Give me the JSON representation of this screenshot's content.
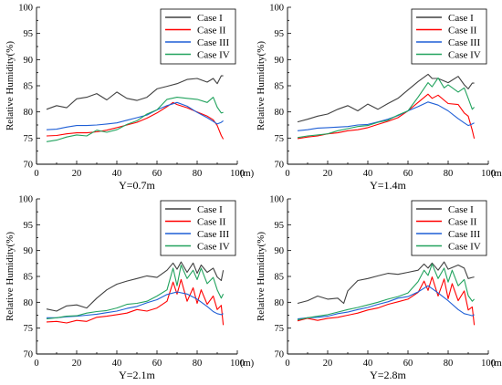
{
  "chart_data": [
    {
      "type": "line",
      "xlabel": "Y=0.7m",
      "ylabel": "Relative Humidity(%)",
      "x_unit": "(m)",
      "xlim": [
        0,
        100
      ],
      "ylim": [
        70,
        100
      ],
      "xticks": [
        0,
        20,
        40,
        60,
        80,
        100
      ],
      "yticks": [
        70,
        75,
        80,
        85,
        90,
        95,
        100
      ],
      "grid": false,
      "legend_position": "top-right",
      "series": [
        {
          "name": "Case I",
          "color": "#404040",
          "x": [
            5,
            10,
            15,
            20,
            25,
            30,
            35,
            40,
            45,
            50,
            55,
            60,
            65,
            70,
            75,
            80,
            85,
            88,
            90,
            92,
            93
          ],
          "y": [
            80.5,
            81.2,
            80.8,
            82.5,
            82.8,
            83.5,
            82.3,
            83.8,
            82.6,
            82.2,
            82.8,
            84.4,
            84.9,
            85.4,
            86.2,
            86.4,
            85.7,
            86.4,
            85.4,
            86.9,
            86.9
          ]
        },
        {
          "name": "Case II",
          "color": "#ff0000",
          "x": [
            5,
            10,
            15,
            20,
            25,
            30,
            35,
            40,
            45,
            50,
            55,
            60,
            65,
            68,
            70,
            75,
            80,
            85,
            88,
            90,
            92,
            93
          ],
          "y": [
            75.4,
            75.5,
            75.8,
            76.0,
            76.0,
            76.2,
            76.5,
            77.0,
            77.5,
            78.0,
            78.8,
            79.8,
            81.0,
            81.8,
            81.4,
            80.8,
            80.0,
            79.2,
            78.5,
            77.4,
            75.5,
            74.8
          ]
        },
        {
          "name": "Case III",
          "color": "#1f5fd6",
          "x": [
            5,
            10,
            15,
            20,
            25,
            30,
            35,
            40,
            45,
            50,
            55,
            60,
            65,
            70,
            75,
            80,
            85,
            88,
            90,
            92,
            93
          ],
          "y": [
            76.6,
            76.7,
            77.1,
            77.4,
            77.4,
            77.5,
            77.7,
            77.9,
            78.4,
            78.9,
            79.4,
            80.4,
            81.2,
            81.8,
            81.1,
            79.9,
            78.9,
            78.2,
            77.7,
            78.0,
            78.3
          ]
        },
        {
          "name": "Case IV",
          "color": "#22a35e",
          "x": [
            5,
            10,
            15,
            20,
            25,
            30,
            35,
            40,
            45,
            50,
            55,
            60,
            65,
            70,
            75,
            80,
            85,
            88,
            90,
            92,
            93
          ],
          "y": [
            74.3,
            74.6,
            75.2,
            75.6,
            75.4,
            76.5,
            76.1,
            76.6,
            77.6,
            78.3,
            79.6,
            80.4,
            82.4,
            82.8,
            82.6,
            82.4,
            81.8,
            82.8,
            80.9,
            79.8,
            79.9
          ]
        }
      ]
    },
    {
      "type": "line",
      "xlabel": "Y=1.4m",
      "ylabel": "Relative Humidity(%)",
      "x_unit": "(m)",
      "xlim": [
        0,
        100
      ],
      "ylim": [
        70,
        100
      ],
      "xticks": [
        0,
        20,
        40,
        60,
        80,
        100
      ],
      "yticks": [
        70,
        75,
        80,
        85,
        90,
        95,
        100
      ],
      "grid": false,
      "legend_position": "top-right",
      "series": [
        {
          "name": "Case I",
          "color": "#404040",
          "x": [
            5,
            10,
            15,
            20,
            25,
            30,
            35,
            40,
            45,
            50,
            55,
            60,
            65,
            70,
            72,
            75,
            80,
            85,
            88,
            90,
            92,
            93
          ],
          "y": [
            78.1,
            78.6,
            79.2,
            79.6,
            80.5,
            81.2,
            80.2,
            81.5,
            80.5,
            81.6,
            82.6,
            84.2,
            85.8,
            87.2,
            86.4,
            86.4,
            85.6,
            86.8,
            85.2,
            84.4,
            85.5,
            85.5
          ]
        },
        {
          "name": "Case II",
          "color": "#ff0000",
          "x": [
            5,
            10,
            15,
            20,
            25,
            30,
            35,
            40,
            45,
            50,
            55,
            60,
            65,
            70,
            72,
            75,
            80,
            85,
            88,
            90,
            92,
            93
          ],
          "y": [
            74.9,
            75.2,
            75.4,
            75.8,
            76.0,
            76.4,
            76.6,
            77.0,
            77.6,
            78.2,
            78.9,
            80.2,
            81.8,
            83.4,
            82.6,
            83.2,
            81.6,
            81.4,
            79.8,
            79.2,
            76.5,
            74.9
          ]
        },
        {
          "name": "Case III",
          "color": "#1f5fd6",
          "x": [
            5,
            10,
            15,
            20,
            25,
            30,
            35,
            40,
            45,
            50,
            55,
            60,
            65,
            70,
            75,
            80,
            85,
            88,
            90,
            92,
            93
          ],
          "y": [
            76.4,
            76.6,
            76.9,
            77.0,
            77.1,
            77.2,
            77.5,
            77.6,
            78.1,
            78.6,
            79.3,
            80.2,
            81.0,
            81.9,
            81.3,
            80.2,
            78.7,
            77.9,
            77.4,
            77.7,
            77.9
          ]
        },
        {
          "name": "Case IV",
          "color": "#22a35e",
          "x": [
            5,
            10,
            15,
            20,
            25,
            30,
            35,
            40,
            45,
            50,
            55,
            60,
            65,
            70,
            72,
            75,
            78,
            80,
            85,
            88,
            90,
            92,
            93
          ],
          "y": [
            75.1,
            75.4,
            75.6,
            75.8,
            76.4,
            76.8,
            77.2,
            77.4,
            78.0,
            78.4,
            79.4,
            80.2,
            82.8,
            85.6,
            84.8,
            86.5,
            84.6,
            85.2,
            83.8,
            84.6,
            82.6,
            80.5,
            80.9
          ]
        }
      ]
    },
    {
      "type": "line",
      "xlabel": "Y=2.1m",
      "ylabel": "Relative Humidity(%)",
      "x_unit": "(m)",
      "xlim": [
        0,
        100
      ],
      "ylim": [
        70,
        100
      ],
      "xticks": [
        0,
        20,
        40,
        60,
        80,
        100
      ],
      "yticks": [
        70,
        75,
        80,
        85,
        90,
        95,
        100
      ],
      "grid": false,
      "legend_position": "top-right",
      "series": [
        {
          "name": "Case I",
          "color": "#404040",
          "x": [
            5,
            10,
            15,
            20,
            25,
            30,
            35,
            40,
            45,
            50,
            55,
            60,
            65,
            68,
            70,
            72,
            75,
            78,
            80,
            82,
            85,
            88,
            90,
            92,
            93
          ],
          "y": [
            78.7,
            78.3,
            79.3,
            79.5,
            78.9,
            80.8,
            82.4,
            83.5,
            84.1,
            84.6,
            85.1,
            84.8,
            86.2,
            87.6,
            86.4,
            87.8,
            85.8,
            87.6,
            85.6,
            87.2,
            85.8,
            86.6,
            84.9,
            84.2,
            86.2
          ]
        },
        {
          "name": "Case II",
          "color": "#ff0000",
          "x": [
            5,
            10,
            15,
            20,
            25,
            30,
            35,
            40,
            45,
            50,
            55,
            60,
            65,
            68,
            70,
            72,
            75,
            78,
            80,
            82,
            85,
            88,
            90,
            92,
            93
          ],
          "y": [
            76.2,
            76.3,
            76.0,
            76.5,
            76.3,
            77.1,
            77.3,
            77.6,
            77.9,
            78.6,
            78.3,
            78.9,
            80.2,
            83.9,
            81.6,
            84.4,
            80.2,
            82.8,
            79.8,
            82.4,
            79.6,
            81.2,
            78.6,
            79.4,
            75.6
          ]
        },
        {
          "name": "Case III",
          "color": "#1f5fd6",
          "x": [
            5,
            10,
            15,
            20,
            25,
            30,
            35,
            40,
            45,
            50,
            55,
            60,
            65,
            70,
            75,
            80,
            85,
            88,
            90,
            92,
            93
          ],
          "y": [
            77.0,
            77.0,
            77.2,
            77.3,
            77.5,
            77.7,
            78.0,
            78.3,
            78.8,
            79.2,
            79.9,
            80.5,
            81.5,
            82.0,
            81.6,
            80.6,
            79.2,
            78.2,
            77.8,
            77.6,
            77.8
          ]
        },
        {
          "name": "Case IV",
          "color": "#22a35e",
          "x": [
            5,
            10,
            15,
            20,
            25,
            30,
            35,
            40,
            45,
            50,
            55,
            60,
            65,
            68,
            70,
            72,
            75,
            78,
            80,
            82,
            85,
            88,
            90,
            92,
            93
          ],
          "y": [
            76.8,
            77.0,
            77.3,
            77.4,
            77.9,
            78.2,
            78.4,
            78.9,
            79.6,
            79.8,
            80.2,
            81.2,
            82.4,
            86.6,
            83.2,
            87.2,
            84.6,
            86.2,
            84.4,
            86.6,
            83.6,
            84.8,
            82.4,
            80.8,
            81.6
          ]
        }
      ]
    },
    {
      "type": "line",
      "xlabel": "Y=2.8m",
      "ylabel": "Relative Humidity(%)",
      "x_unit": "(m)",
      "xlim": [
        0,
        100
      ],
      "ylim": [
        70,
        100
      ],
      "xticks": [
        0,
        20,
        40,
        60,
        80,
        100
      ],
      "yticks": [
        70,
        75,
        80,
        85,
        90,
        95,
        100
      ],
      "grid": false,
      "legend_position": "top-right",
      "series": [
        {
          "name": "Case I",
          "color": "#404040",
          "x": [
            5,
            10,
            15,
            20,
            25,
            28,
            30,
            35,
            40,
            45,
            50,
            55,
            60,
            65,
            68,
            70,
            72,
            75,
            78,
            80,
            85,
            88,
            90,
            92,
            93
          ],
          "y": [
            79.8,
            80.3,
            81.2,
            80.6,
            80.8,
            79.8,
            82.2,
            84.2,
            84.6,
            85.1,
            85.6,
            85.4,
            85.8,
            86.2,
            87.4,
            86.6,
            87.6,
            86.2,
            87.8,
            86.4,
            87.2,
            86.6,
            84.6,
            84.8,
            84.9
          ]
        },
        {
          "name": "Case II",
          "color": "#ff0000",
          "x": [
            5,
            10,
            15,
            20,
            25,
            30,
            35,
            40,
            45,
            50,
            55,
            60,
            65,
            68,
            70,
            72,
            75,
            78,
            80,
            82,
            85,
            88,
            90,
            92,
            93
          ],
          "y": [
            76.4,
            76.9,
            76.5,
            76.9,
            77.1,
            77.5,
            77.9,
            78.5,
            78.9,
            79.6,
            80.1,
            80.6,
            81.9,
            84.1,
            82.3,
            84.9,
            81.2,
            84.5,
            80.7,
            83.6,
            80.3,
            82.2,
            78.5,
            79.1,
            75.6
          ]
        },
        {
          "name": "Case III",
          "color": "#1f5fd6",
          "x": [
            5,
            10,
            15,
            20,
            25,
            30,
            35,
            40,
            45,
            50,
            55,
            60,
            65,
            70,
            75,
            80,
            85,
            88,
            90,
            92,
            93
          ],
          "y": [
            76.8,
            77.0,
            77.1,
            77.3,
            77.8,
            78.1,
            78.6,
            79.0,
            79.6,
            80.1,
            80.8,
            81.1,
            82.0,
            83.2,
            81.8,
            80.3,
            78.6,
            77.8,
            77.6,
            77.4,
            77.6
          ]
        },
        {
          "name": "Case IV",
          "color": "#22a35e",
          "x": [
            5,
            10,
            15,
            20,
            25,
            30,
            35,
            40,
            45,
            50,
            55,
            60,
            65,
            68,
            70,
            72,
            75,
            78,
            80,
            82,
            85,
            88,
            90,
            92,
            93
          ],
          "y": [
            76.6,
            77.0,
            77.3,
            77.6,
            78.1,
            78.6,
            79.0,
            79.5,
            80.0,
            80.6,
            81.1,
            81.8,
            84.0,
            86.2,
            85.2,
            87.4,
            84.6,
            86.6,
            83.9,
            86.2,
            83.2,
            84.4,
            81.3,
            80.2,
            80.6
          ]
        }
      ]
    }
  ]
}
